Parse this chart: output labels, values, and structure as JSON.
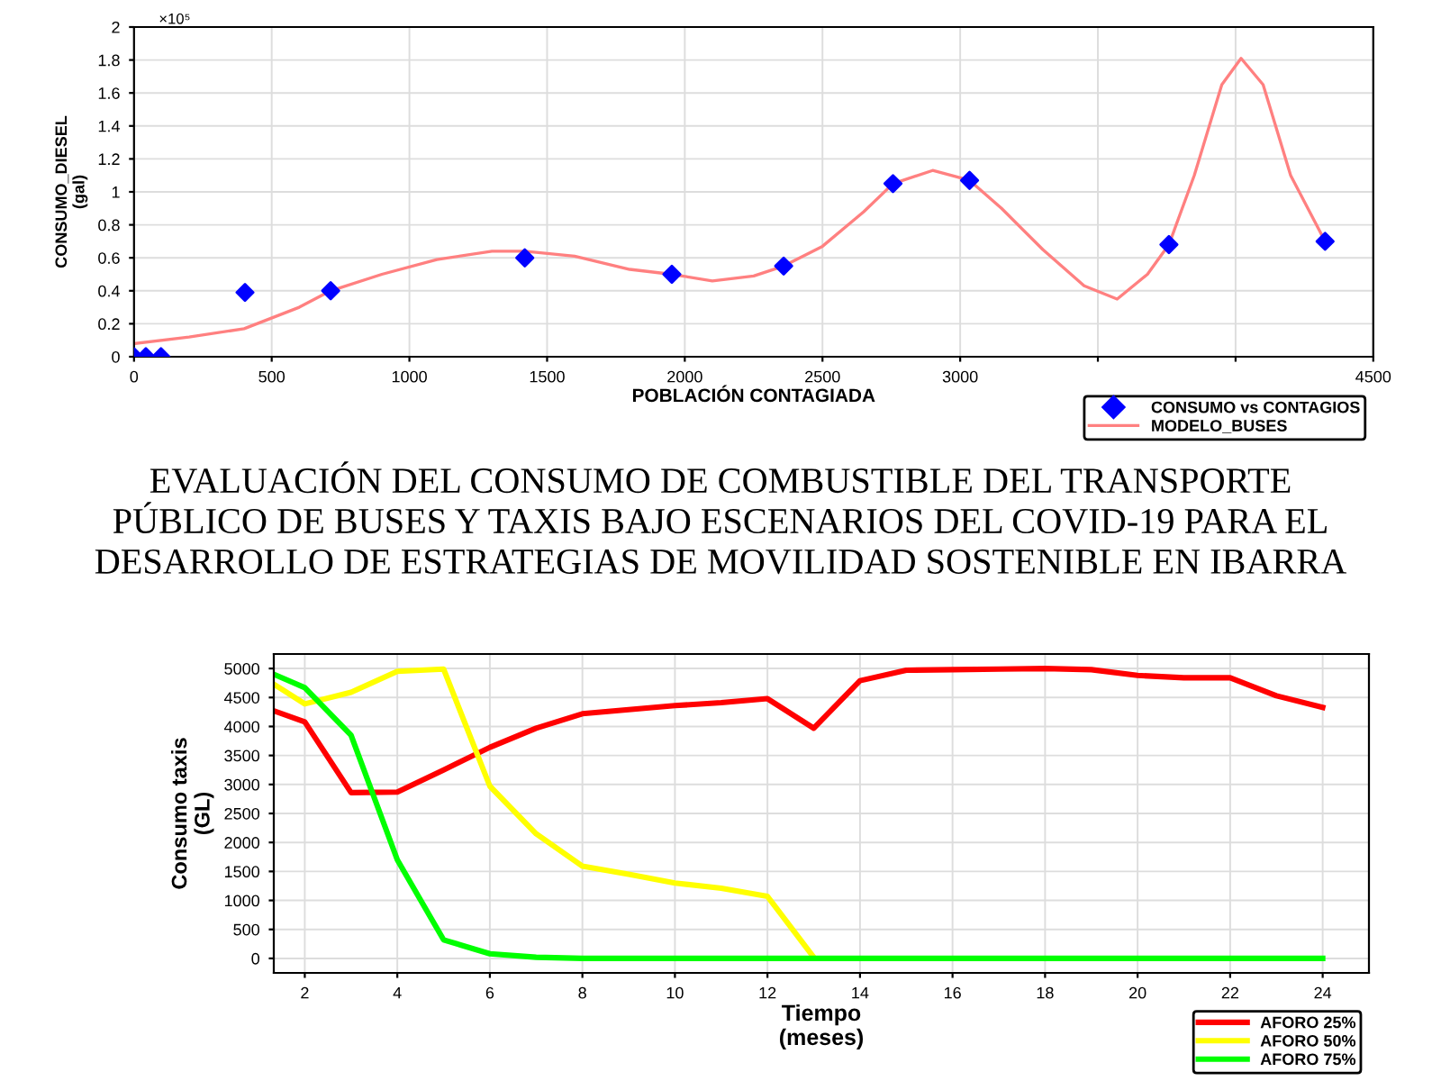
{
  "chart_data": [
    {
      "type": "scatter",
      "xlabel": "POBLACIÓN CONTAGIADA",
      "ylabel": "CONSUMO_DIESEL\n(gal)",
      "xlim": [
        0,
        4500
      ],
      "ylim": [
        0,
        2
      ],
      "xticks": [
        0,
        500,
        1000,
        1500,
        2000,
        2500,
        3000,
        {
          "value": 3500,
          "label": null
        },
        {
          "value": 4000,
          "label": null
        },
        4500
      ],
      "yticks": [
        0,
        0.2,
        0.4,
        0.6,
        0.8,
        1,
        1.2,
        1.4,
        1.6,
        1.8,
        2
      ],
      "annotations": [
        "×10⁵"
      ],
      "grid": true,
      "legend": "bottom right",
      "series": [
        {
          "name": "CONSUMO vs CONTAGIOS",
          "type": "scatter",
          "marker": "diamond",
          "color": "#0000ff",
          "x": [
            0,
            43,
            98,
            403,
            714,
            1419,
            1953,
            2359,
            2756,
            3034,
            3758,
            4325
          ],
          "values": [
            0,
            0,
            0,
            0.39,
            0.4,
            0.6,
            0.5,
            0.55,
            1.05,
            1.07,
            0.68,
            0.7
          ]
        },
        {
          "name": "MODELO_BUSES",
          "type": "line",
          "marker": "none",
          "line_style": "solid",
          "color": "#ff8080",
          "x": [
            0,
            200,
            400,
            600,
            714,
            900,
            1100,
            1300,
            1419,
            1600,
            1800,
            1953,
            2100,
            2250,
            2359,
            2500,
            2650,
            2756,
            2900,
            3034,
            3150,
            3300,
            3450,
            3570,
            3680,
            3758,
            3850,
            3950,
            4020,
            4100,
            4200,
            4325
          ],
          "values": [
            0.08,
            0.12,
            0.17,
            0.3,
            0.4,
            0.5,
            0.59,
            0.64,
            0.64,
            0.61,
            0.53,
            0.5,
            0.46,
            0.49,
            0.55,
            0.67,
            0.88,
            1.05,
            1.13,
            1.07,
            0.9,
            0.65,
            0.43,
            0.35,
            0.5,
            0.68,
            1.1,
            1.65,
            1.81,
            1.65,
            1.1,
            0.7
          ]
        }
      ]
    },
    {
      "type": "line",
      "title": "EVALUACIÓN DEL CONSUMO DE COMBUSTIBLE DEL TRANSPORTE\nPÚBLICO DE BUSES Y TAXIS BAJO ESCENARIOS DEL COVID-19 PARA EL\nDESARROLLO DE ESTRATEGIAS DE MOVILIDAD SOSTENIBLE EN IBARRA",
      "xlabel": "Tiempo\n(meses)",
      "ylabel": "Consumo taxis\n(GL)",
      "xlim": [
        1.33,
        25
      ],
      "ylim": [
        -250,
        5250
      ],
      "xticks": [
        2,
        4,
        6,
        8,
        10,
        12,
        14,
        16,
        18,
        20,
        22,
        24
      ],
      "yticks": [
        0,
        500,
        1000,
        1500,
        2000,
        2500,
        3000,
        3500,
        4000,
        4500,
        5000
      ],
      "grid": true,
      "legend": "bottom right",
      "marker": "none",
      "line_style": "solid",
      "series": [
        {
          "name": "AFORO 25%",
          "color": "#ff0000",
          "x": [
            1.33,
            2,
            3,
            4,
            5,
            6,
            7,
            8,
            9,
            10,
            11,
            12,
            13,
            14,
            15,
            16,
            17,
            18,
            19,
            20,
            21,
            22,
            23,
            24
          ],
          "values": [
            4270,
            4080,
            2860,
            2870,
            3250,
            3640,
            3970,
            4220,
            4290,
            4360,
            4410,
            4480,
            3970,
            4790,
            4970,
            4980,
            4990,
            5000,
            4980,
            4880,
            4840,
            4840,
            4530,
            4330
          ]
        },
        {
          "name": "AFORO 50%",
          "color": "#ffff00",
          "x": [
            1.33,
            2,
            3,
            4,
            5,
            6,
            7,
            8,
            9,
            10,
            11,
            12,
            13
          ],
          "values": [
            4730,
            4390,
            4590,
            4950,
            4990,
            2970,
            2150,
            1590,
            1450,
            1300,
            1210,
            1070,
            20
          ]
        },
        {
          "name": "AFORO 75%",
          "color": "#00ff00",
          "x": [
            1.33,
            2,
            3,
            4,
            5,
            6,
            7,
            8,
            9,
            10,
            11,
            12,
            13,
            14,
            15,
            16,
            17,
            18,
            19,
            20,
            21,
            22,
            23,
            24
          ],
          "values": [
            4900,
            4670,
            3850,
            1700,
            320,
            80,
            20,
            0,
            0,
            0,
            0,
            0,
            0,
            0,
            0,
            0,
            0,
            0,
            0,
            0,
            0,
            0,
            0,
            0
          ]
        }
      ]
    }
  ]
}
